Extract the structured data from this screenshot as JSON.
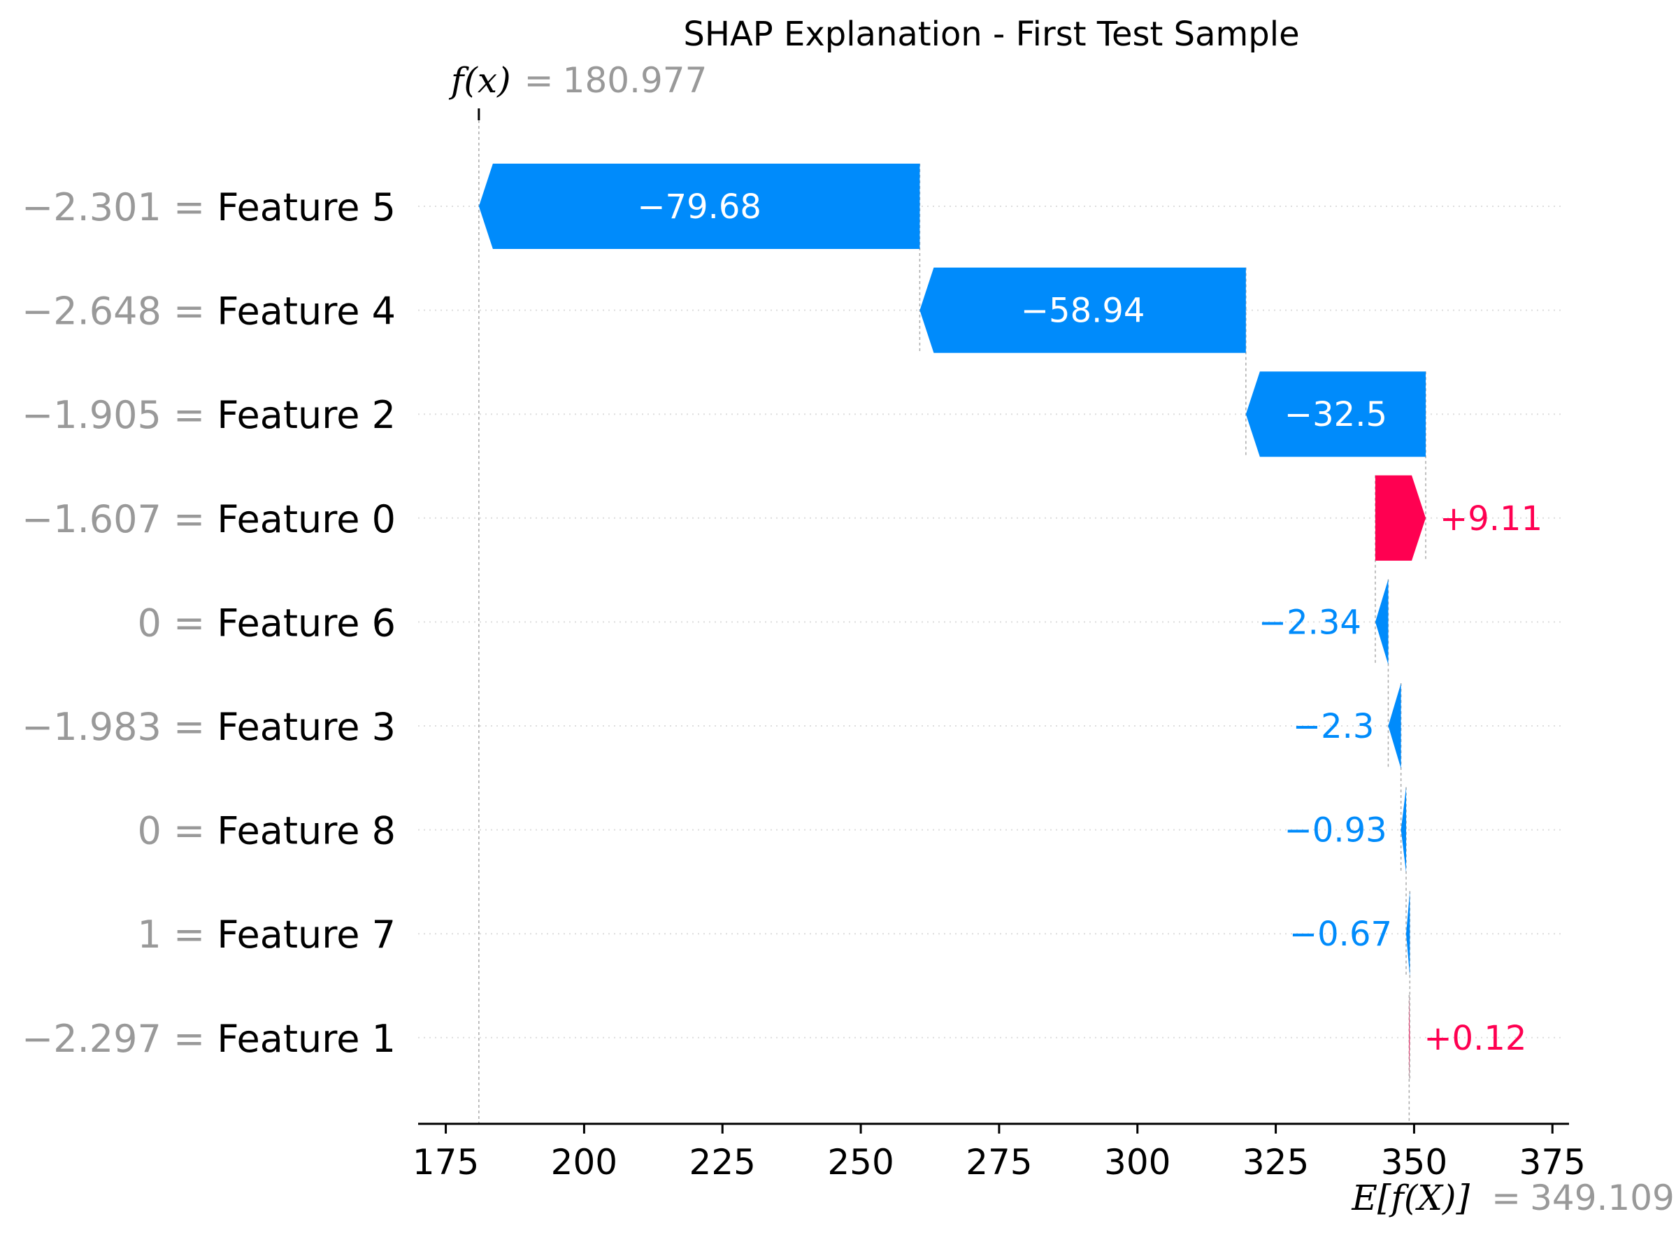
{
  "chart_data": {
    "type": "waterfall",
    "title": "SHAP Explanation - First Test Sample",
    "fx": {
      "label": "f(x)",
      "equals": "=",
      "value": "180.977"
    },
    "efx": {
      "label": "E[f(X)]",
      "equals": "=",
      "value": "349.109"
    },
    "base_value": 349.109,
    "output_value": 180.977,
    "xlim": [
      170,
      378
    ],
    "xticks": [
      175,
      200,
      225,
      250,
      275,
      300,
      325,
      350,
      375
    ],
    "xtick_labels": [
      "175",
      "200",
      "225",
      "250",
      "275",
      "300",
      "325",
      "350",
      "375"
    ],
    "rows": [
      {
        "value_label": "−2.301",
        "feature": "Feature 5",
        "shap": -79.68,
        "shap_label": "−79.68"
      },
      {
        "value_label": "−2.648",
        "feature": "Feature 4",
        "shap": -58.94,
        "shap_label": "−58.94"
      },
      {
        "value_label": "−1.905",
        "feature": "Feature 2",
        "shap": -32.5,
        "shap_label": "−32.5"
      },
      {
        "value_label": "−1.607",
        "feature": "Feature 0",
        "shap": 9.11,
        "shap_label": "+9.11"
      },
      {
        "value_label": "0",
        "feature": "Feature 6",
        "shap": -2.34,
        "shap_label": "−2.34"
      },
      {
        "value_label": "−1.983",
        "feature": "Feature 3",
        "shap": -2.3,
        "shap_label": "−2.3"
      },
      {
        "value_label": "0",
        "feature": "Feature 8",
        "shap": -0.93,
        "shap_label": "−0.93"
      },
      {
        "value_label": "1",
        "feature": "Feature 7",
        "shap": -0.67,
        "shap_label": "−0.67"
      },
      {
        "value_label": "−2.297",
        "feature": "Feature 1",
        "shap": 0.12,
        "shap_label": "+0.12"
      }
    ],
    "colors": {
      "positive": "#ff0051",
      "negative": "#008bfb",
      "feature_value_text": "#999999"
    },
    "grid": "dotted-per-row",
    "legend": "none"
  }
}
